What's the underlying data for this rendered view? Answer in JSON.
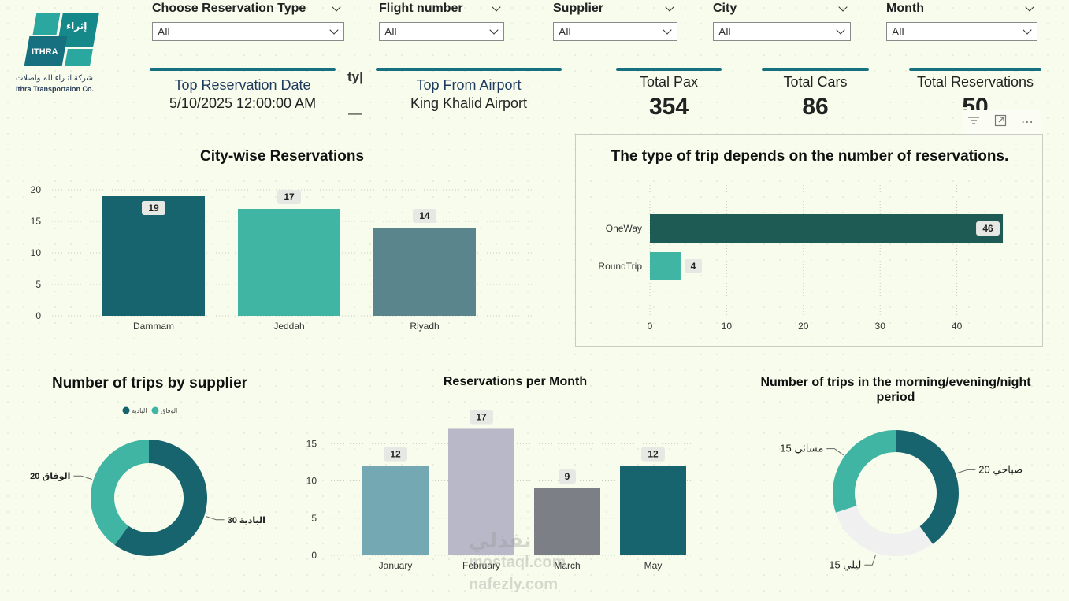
{
  "logo": {
    "name_en": "ITHRA",
    "name_ar": "إثراء",
    "company_ar": "شركة اثـراء للمـواصلات",
    "company_en": "Ithra Transportaion Co."
  },
  "slicers": [
    {
      "label": "Choose Reservation Type",
      "value": "All"
    },
    {
      "label": "Flight number",
      "value": "All"
    },
    {
      "label": "Supplier",
      "value": "All"
    },
    {
      "label": "City",
      "value": "All"
    },
    {
      "label": "Month",
      "value": "All"
    }
  ],
  "cards": {
    "top_date": {
      "title": "Top Reservation Date",
      "value": "5/10/2025 12:00:00 AM"
    },
    "top_airport": {
      "title": "Top From Airport",
      "value": "King Khalid Airport"
    },
    "fragment": "ty|"
  },
  "kpis": [
    {
      "title": "Total Pax",
      "value": "354"
    },
    {
      "title": "Total Cars",
      "value": "86"
    },
    {
      "title": "Total Reservations",
      "value": "50"
    }
  ],
  "header_icons": {
    "filter": "filter-icon",
    "focus": "focus-mode-icon",
    "more": "more-options-icon"
  },
  "colors": {
    "teal_dark": "#17646e",
    "teal": "#41b5a4",
    "slate": "#5a858c",
    "bar_dark": "#1e5b55",
    "light_teal": "#74a9b4",
    "lavender": "#b8b8c9",
    "gray": "#7d7f86",
    "donut_light": "#f0f0f0"
  },
  "watermark": {
    "line1": "نفذلي",
    "line2": "mostaql.com",
    "line3": "nafezly.com"
  },
  "chart_data": [
    {
      "id": "city",
      "type": "bar",
      "title": "City-wise Reservations",
      "categories": [
        "Dammam",
        "Jeddah",
        "Riyadh"
      ],
      "values": [
        19,
        17,
        14
      ],
      "labels": [
        "19",
        "17",
        "14"
      ],
      "ylim": [
        0,
        20
      ],
      "yticks": [
        "0",
        "5",
        "10",
        "15",
        "20"
      ],
      "colors": [
        "#17646e",
        "#41b5a4",
        "#5a858c"
      ]
    },
    {
      "id": "trip_type",
      "type": "bar",
      "orientation": "horizontal",
      "title": "The type of trip depends on the number of reservations.",
      "categories": [
        "OneWay",
        "RoundTrip"
      ],
      "values": [
        46,
        4
      ],
      "labels": [
        "46",
        "4"
      ],
      "xlim": [
        0,
        47
      ],
      "xticks": [
        "0",
        "10",
        "20",
        "30",
        "40"
      ],
      "colors": [
        "#1e5b55",
        "#41b5a4"
      ]
    },
    {
      "id": "supplier",
      "type": "pie",
      "title": "Number of trips by supplier",
      "legend": [
        "البادية",
        "الوفاق"
      ],
      "slices": [
        {
          "name": "البادية",
          "value": 30,
          "label": "30 البادية",
          "color": "#17646e"
        },
        {
          "name": "الوفاق",
          "value": 20,
          "label": "20 الوفاق",
          "color": "#41b5a4"
        }
      ]
    },
    {
      "id": "month",
      "type": "bar",
      "title": "Reservations per Month",
      "categories": [
        "January",
        "February",
        "March",
        "May"
      ],
      "values": [
        12,
        17,
        9,
        12
      ],
      "labels": [
        "12",
        "17",
        "9",
        "12"
      ],
      "ylim": [
        0,
        18
      ],
      "yticks": [
        "0",
        "5",
        "10",
        "15"
      ],
      "colors": [
        "#74a9b4",
        "#b8b8c9",
        "#7d7f86",
        "#17646e"
      ]
    },
    {
      "id": "period",
      "type": "pie",
      "title": "Number of trips in the morning/evening/night period",
      "slices": [
        {
          "name": "صباحي",
          "value": 20,
          "label": "20 صباحي",
          "color": "#17646e"
        },
        {
          "name": "ليلي",
          "value": 15,
          "label": "15 ليلي",
          "color": "#f0f0f0"
        },
        {
          "name": "مسائي",
          "value": 15,
          "label": "15 مسائي",
          "color": "#41b5a4"
        }
      ]
    }
  ]
}
